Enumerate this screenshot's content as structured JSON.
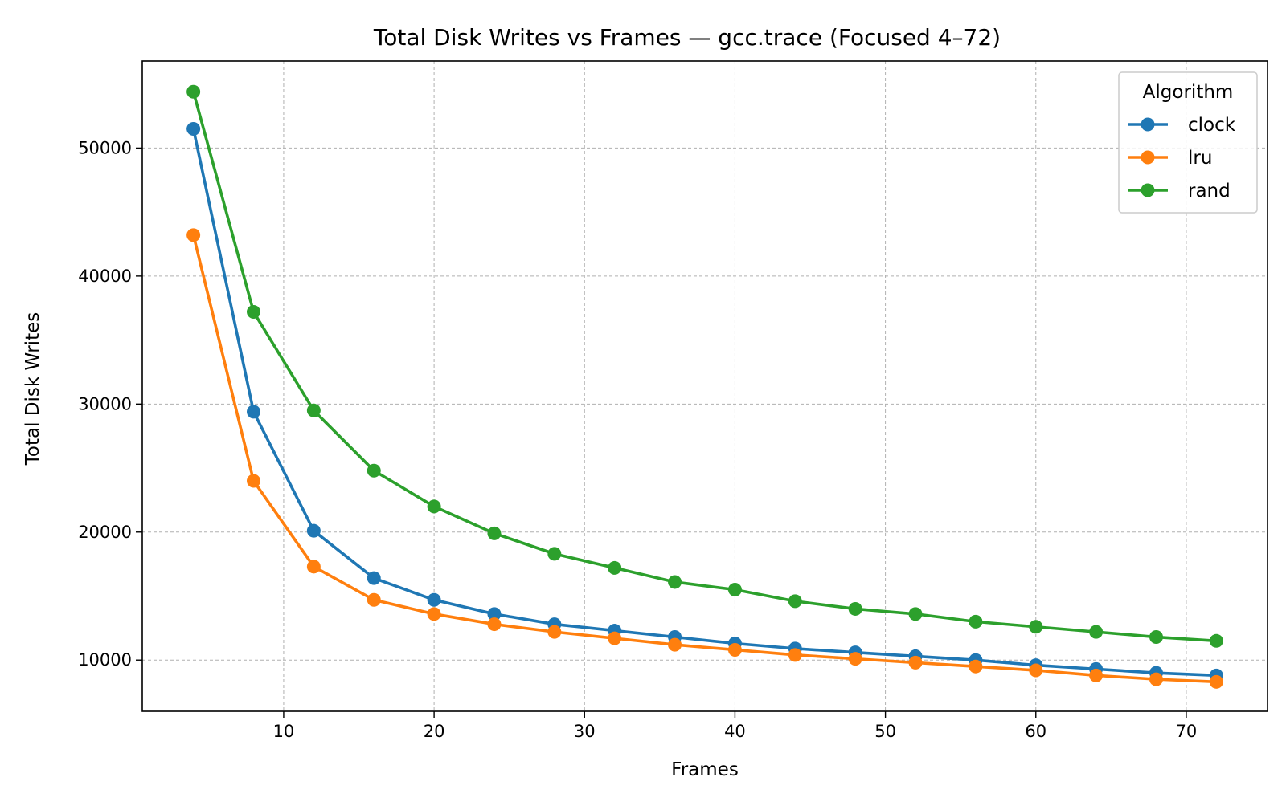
{
  "chart_data": {
    "type": "line",
    "title": "Total Disk Writes vs Frames — gcc.trace (Focused 4–72)",
    "xlabel": "Frames",
    "ylabel": "Total Disk Writes",
    "xlim": [
      0.6,
      75.4
    ],
    "ylim": [
      6000,
      56800
    ],
    "xticks": [
      10,
      20,
      30,
      40,
      50,
      60,
      70
    ],
    "yticks": [
      10000,
      20000,
      30000,
      40000,
      50000
    ],
    "grid": true,
    "legend": {
      "title": "Algorithm",
      "placement": "top-right"
    },
    "x": [
      4,
      8,
      12,
      16,
      20,
      24,
      28,
      32,
      36,
      40,
      44,
      48,
      52,
      56,
      60,
      64,
      68,
      72
    ],
    "series": [
      {
        "name": "clock",
        "color": "#1f77b4",
        "values": [
          51500,
          29400,
          20100,
          16400,
          14700,
          13600,
          12800,
          12300,
          11800,
          11300,
          10900,
          10600,
          10300,
          10000,
          9600,
          9300,
          9000,
          8800
        ]
      },
      {
        "name": "lru",
        "color": "#ff7f0e",
        "values": [
          43200,
          24000,
          17300,
          14700,
          13600,
          12800,
          12200,
          11700,
          11200,
          10800,
          10400,
          10100,
          9800,
          9500,
          9200,
          8800,
          8500,
          8300
        ]
      },
      {
        "name": "rand",
        "color": "#2ca02c",
        "values": [
          54400,
          37200,
          29500,
          24800,
          22000,
          19900,
          18300,
          17200,
          16100,
          15500,
          14600,
          14000,
          13600,
          13000,
          12600,
          12200,
          11800,
          11500
        ]
      }
    ]
  }
}
